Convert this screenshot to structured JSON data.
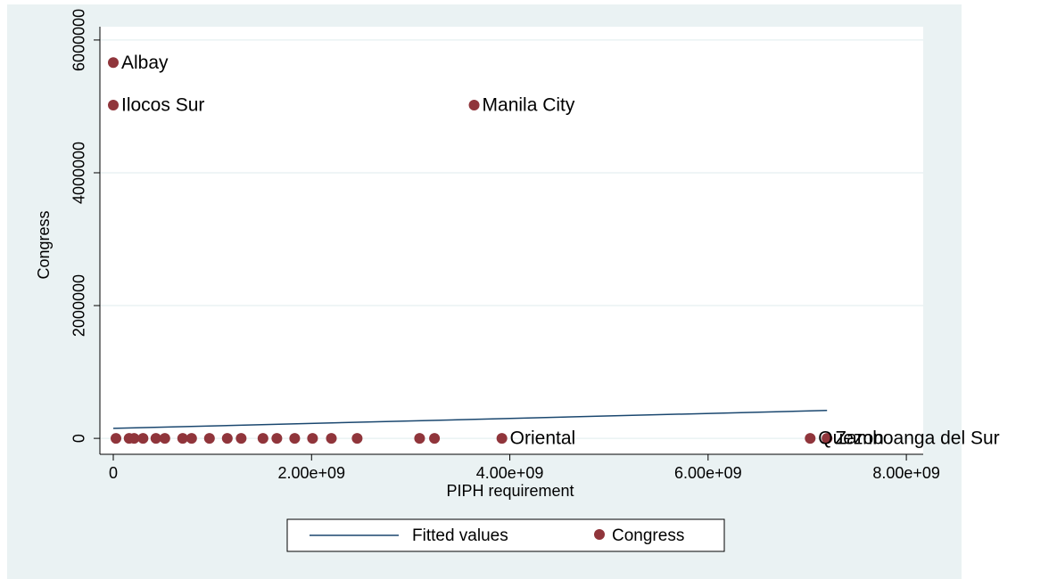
{
  "chart_data": {
    "type": "scatter",
    "x_label": "PIPH requirement",
    "y_label": "Congress",
    "xlim": [
      -135000000,
      8170000000
    ],
    "ylim": [
      -240000,
      6200000
    ],
    "xticks": [
      0,
      {
        "value": 2000000000,
        "label": "2.00e+09"
      },
      {
        "value": 4000000000,
        "label": "4.00e+09"
      },
      {
        "value": 6000000000,
        "label": "6.00e+09"
      },
      {
        "value": 8000000000,
        "label": "8.00e+09"
      }
    ],
    "yticks": [
      0,
      2000000,
      4000000,
      6000000
    ],
    "grid": true,
    "series": [
      {
        "name": "Fitted values",
        "type": "line",
        "color": "#1a476f",
        "x": [
          0,
          7200000000
        ],
        "values": [
          150000,
          420000
        ]
      },
      {
        "name": "Congress",
        "type": "scatter",
        "color": "#90353b",
        "x": [
          0,
          0,
          3640000000,
          7200000000,
          7030000000,
          27000000,
          160000000,
          210000000,
          300000000,
          430000000,
          520000000,
          700000000,
          790000000,
          970000000,
          1150000000,
          1290000000,
          1510000000,
          1650000000,
          1830000000,
          2010000000,
          2200000000,
          2460000000,
          3090000000,
          3240000000,
          3920000000
        ],
        "values": [
          5660000,
          5020000,
          5020000,
          0,
          0,
          0,
          0,
          0,
          0,
          0,
          0,
          0,
          0,
          0,
          0,
          0,
          0,
          0,
          0,
          0,
          0,
          0,
          0,
          0,
          0
        ],
        "point_labels": [
          "Albay",
          "Ilocos Sur",
          "Manila City",
          "Zamboanga del Sur",
          "Quezon",
          null,
          null,
          null,
          null,
          null,
          null,
          null,
          null,
          null,
          null,
          null,
          null,
          null,
          null,
          null,
          null,
          null,
          null,
          null,
          "Oriental"
        ]
      }
    ]
  }
}
